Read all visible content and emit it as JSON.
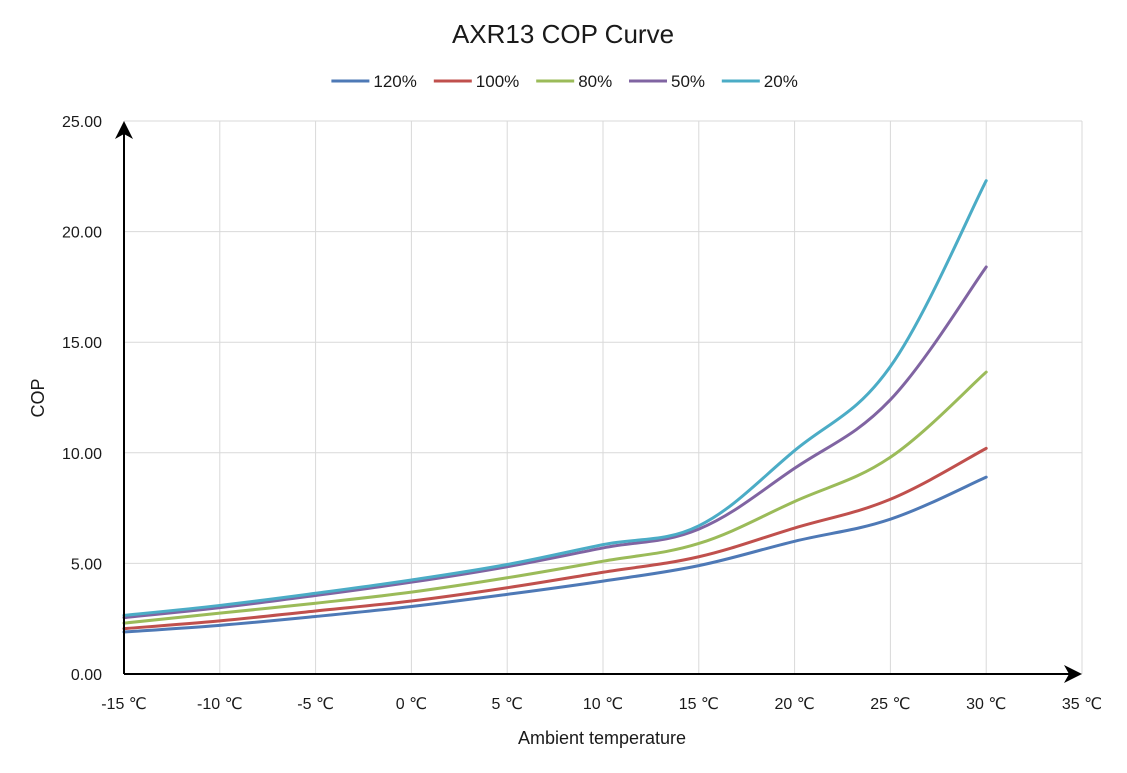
{
  "chart_data": {
    "type": "line",
    "title": "AXR13 COP Curve",
    "xlabel": "Ambient temperature",
    "ylabel": "COP",
    "x": [
      -15,
      -10,
      -5,
      0,
      5,
      10,
      15,
      20,
      25,
      30
    ],
    "x_tick_labels": [
      "-15 ℃",
      "-10 ℃",
      "-5 ℃",
      "0 ℃",
      "5 ℃",
      "10 ℃",
      "15 ℃",
      "20 ℃",
      "25 ℃",
      "30 ℃",
      "35 ℃"
    ],
    "x_tick_values": [
      -15,
      -10,
      -5,
      0,
      5,
      10,
      15,
      20,
      25,
      30,
      35
    ],
    "xlim": [
      -15,
      35
    ],
    "y_tick_labels": [
      "0.00",
      "5.00",
      "10.00",
      "15.00",
      "20.00",
      "25.00"
    ],
    "y_tick_values": [
      0,
      5,
      10,
      15,
      20,
      25
    ],
    "ylim": [
      0,
      25
    ],
    "grid": true,
    "legend_position": "top",
    "series": [
      {
        "name": "120%",
        "color": "#4e79b6",
        "values": [
          1.9,
          2.2,
          2.6,
          3.05,
          3.6,
          4.2,
          4.9,
          6.0,
          7.0,
          8.9
        ]
      },
      {
        "name": "100%",
        "color": "#c0504d",
        "values": [
          2.05,
          2.4,
          2.85,
          3.3,
          3.9,
          4.6,
          5.3,
          6.6,
          7.9,
          10.2
        ]
      },
      {
        "name": "80%",
        "color": "#9bbb59",
        "values": [
          2.3,
          2.75,
          3.2,
          3.7,
          4.35,
          5.1,
          5.9,
          7.8,
          9.8,
          13.65
        ]
      },
      {
        "name": "50%",
        "color": "#8064a2",
        "values": [
          2.55,
          3.0,
          3.55,
          4.15,
          4.85,
          5.7,
          6.55,
          9.3,
          12.4,
          18.4
        ]
      },
      {
        "name": "20%",
        "color": "#4bacc6",
        "values": [
          2.65,
          3.1,
          3.65,
          4.25,
          4.95,
          5.85,
          6.7,
          10.1,
          13.9,
          22.3
        ]
      }
    ]
  }
}
